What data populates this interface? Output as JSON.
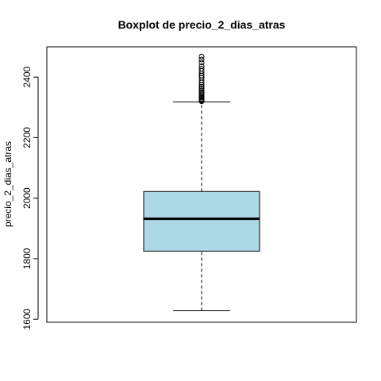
{
  "chart_data": {
    "type": "boxplot",
    "title": "Boxplot de precio_2_dias_atras",
    "xlabel": "",
    "ylabel": "precio_2_dias_atras",
    "ylim": [
      1590,
      2500
    ],
    "yticks": [
      1600,
      1800,
      2000,
      2200,
      2400
    ],
    "grid": false,
    "box": {
      "min": 1628,
      "q1": 1825,
      "median": 1932,
      "q3": 2022,
      "max": 2318,
      "outliers": [
        2320,
        2322,
        2325,
        2328,
        2332,
        2336,
        2340,
        2345,
        2350,
        2356,
        2362,
        2368,
        2375,
        2382,
        2390,
        2398,
        2405,
        2412,
        2420,
        2428,
        2436,
        2448,
        2458,
        2468
      ],
      "fill_color": "#add8e6",
      "line_color": "#000000"
    }
  }
}
